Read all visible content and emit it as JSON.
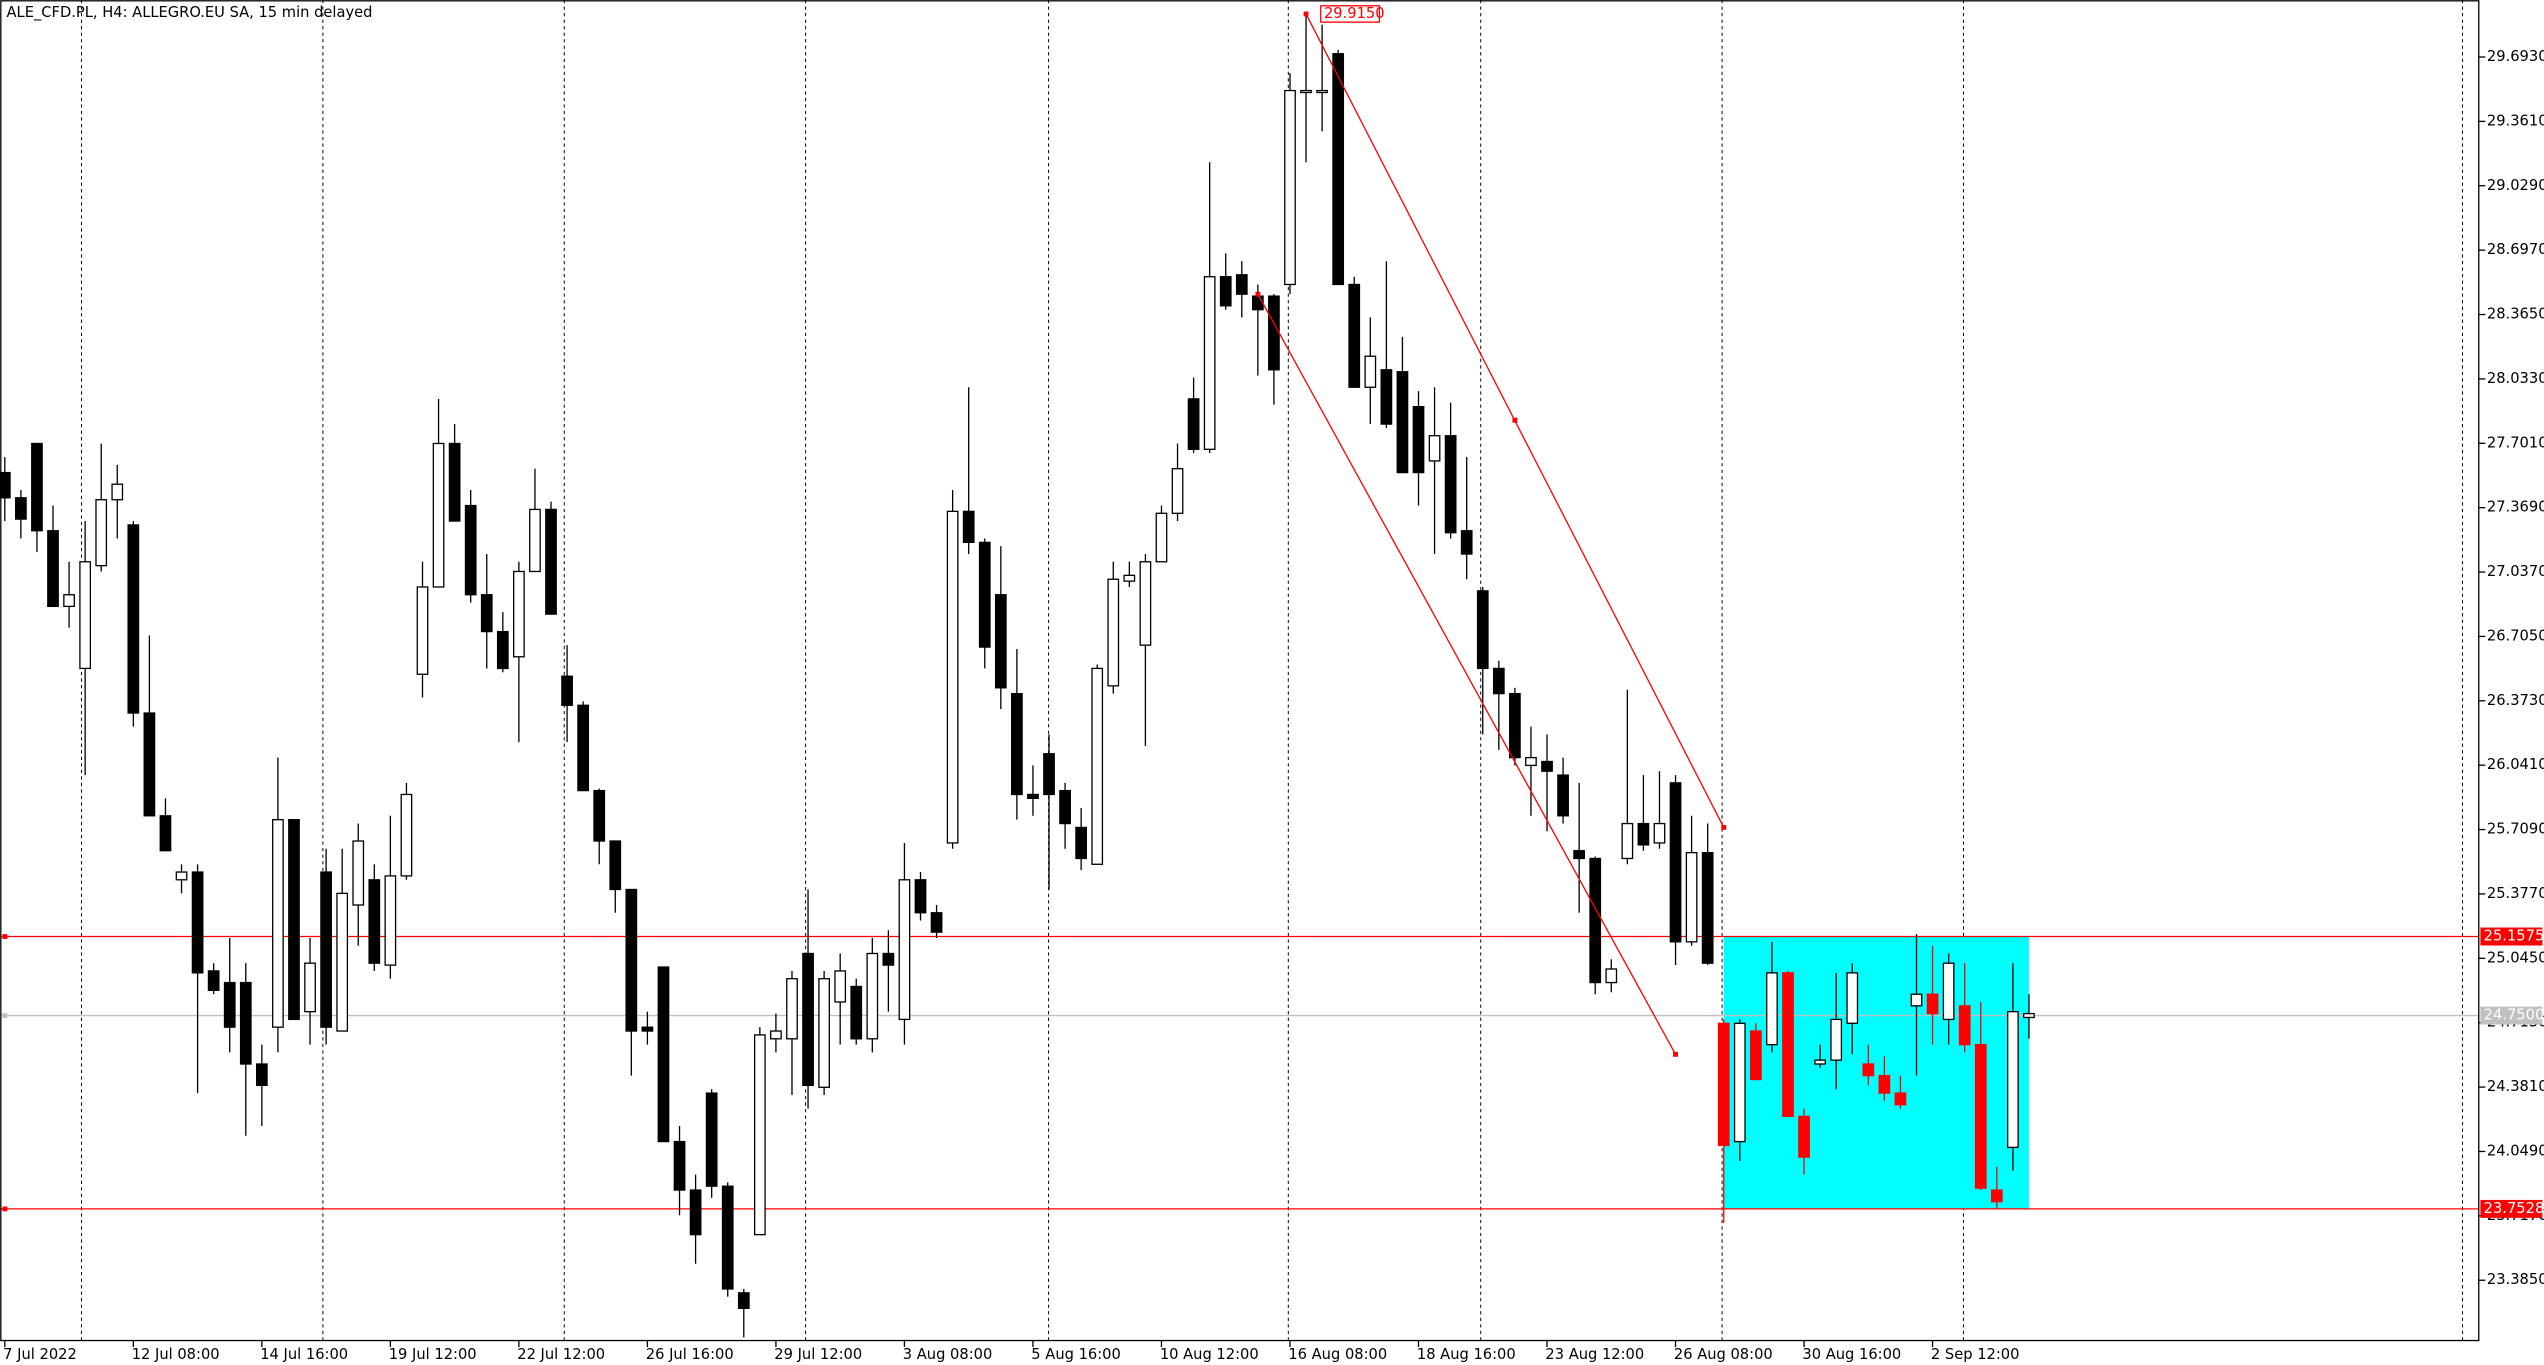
{
  "chart_data": {
    "type": "candlestick",
    "title": "ALE_CFD.PL, H4:  ALLEGRO.EU SA, 15 min delayed",
    "xlim": [
      -0.3,
      154
    ],
    "ylim": [
      23.074,
      29.987
    ],
    "grid": false,
    "up_color": "#ffffff",
    "down_color": "#000000",
    "yticks": [
      {
        "value": 29.693,
        "label": "29.6930"
      },
      {
        "value": 29.361,
        "label": "29.3610"
      },
      {
        "value": 29.029,
        "label": "29.0290"
      },
      {
        "value": 28.697,
        "label": "28.6970"
      },
      {
        "value": 28.365,
        "label": "28.3650"
      },
      {
        "value": 28.033,
        "label": "28.0330"
      },
      {
        "value": 27.701,
        "label": "27.7010"
      },
      {
        "value": 27.369,
        "label": "27.3690"
      },
      {
        "value": 27.037,
        "label": "27.0370"
      },
      {
        "value": 26.705,
        "label": "26.7050"
      },
      {
        "value": 26.373,
        "label": "26.3730"
      },
      {
        "value": 26.041,
        "label": "26.0410"
      },
      {
        "value": 25.709,
        "label": "25.7090"
      },
      {
        "value": 25.377,
        "label": "25.3770"
      },
      {
        "value": 25.045,
        "label": "25.0450"
      },
      {
        "value": 24.713,
        "label": "24.7130"
      },
      {
        "value": 24.381,
        "label": "24.3810"
      },
      {
        "value": 24.049,
        "label": "24.0490"
      },
      {
        "value": 23.717,
        "label": "23.7170"
      },
      {
        "value": 23.385,
        "label": "23.3850"
      }
    ],
    "xticks": [
      {
        "value": 0,
        "label": "7 Jul 2022"
      },
      {
        "value": 8,
        "label": "12 Jul 08:00"
      },
      {
        "value": 16,
        "label": "14 Jul 16:00"
      },
      {
        "value": 24,
        "label": "19 Jul 12:00"
      },
      {
        "value": 32,
        "label": "22 Jul 12:00"
      },
      {
        "value": 40,
        "label": "26 Jul 16:00"
      },
      {
        "value": 48,
        "label": "29 Jul 12:00"
      },
      {
        "value": 56,
        "label": "3 Aug 08:00"
      },
      {
        "value": 64,
        "label": "5 Aug 16:00"
      },
      {
        "value": 72,
        "label": "10 Aug 12:00"
      },
      {
        "value": 80,
        "label": "16 Aug 08:00"
      },
      {
        "value": 88,
        "label": "18 Aug 16:00"
      },
      {
        "value": 96,
        "label": "23 Aug 12:00"
      },
      {
        "value": 104,
        "label": "26 Aug 08:00"
      },
      {
        "value": 112,
        "label": "30 Aug 16:00"
      },
      {
        "value": 120,
        "label": "2 Sep 12:00"
      }
    ],
    "candles": [
      [
        27.55,
        27.63,
        27.3,
        27.42
      ],
      [
        27.42,
        27.46,
        27.21,
        27.31
      ],
      [
        27.7,
        27.7,
        27.14,
        27.25
      ],
      [
        27.25,
        27.38,
        26.86,
        26.86
      ],
      [
        26.86,
        27.09,
        26.75,
        26.92
      ],
      [
        26.54,
        27.3,
        25.99,
        27.09
      ],
      [
        27.07,
        27.7,
        27.04,
        27.41
      ],
      [
        27.41,
        27.59,
        27.21,
        27.49
      ],
      [
        27.28,
        27.3,
        26.24,
        26.31
      ],
      [
        26.31,
        26.71,
        25.78,
        25.78
      ],
      [
        25.78,
        25.87,
        25.6,
        25.6
      ],
      [
        25.45,
        25.53,
        25.38,
        25.49
      ],
      [
        25.49,
        25.53,
        24.35,
        24.97
      ],
      [
        24.98,
        25.02,
        24.86,
        24.88
      ],
      [
        24.92,
        25.15,
        24.56,
        24.69
      ],
      [
        24.92,
        25.02,
        24.13,
        24.5
      ],
      [
        24.5,
        24.6,
        24.18,
        24.39
      ],
      [
        24.69,
        26.08,
        24.56,
        25.76
      ],
      [
        25.76,
        25.76,
        24.73,
        24.73
      ],
      [
        24.77,
        25.15,
        24.6,
        25.02
      ],
      [
        25.49,
        25.61,
        24.6,
        24.69
      ],
      [
        24.67,
        25.61,
        24.67,
        25.38
      ],
      [
        25.32,
        25.74,
        25.11,
        25.65
      ],
      [
        25.45,
        25.53,
        24.98,
        25.02
      ],
      [
        25.01,
        25.78,
        24.94,
        25.47
      ],
      [
        25.47,
        25.95,
        25.45,
        25.89
      ],
      [
        26.51,
        27.09,
        26.39,
        26.96
      ],
      [
        26.96,
        27.93,
        26.96,
        27.7
      ],
      [
        27.7,
        27.8,
        27.3,
        27.3
      ],
      [
        27.38,
        27.46,
        26.88,
        26.92
      ],
      [
        26.92,
        27.13,
        26.54,
        26.73
      ],
      [
        26.73,
        26.83,
        26.52,
        26.54
      ],
      [
        26.6,
        27.09,
        26.16,
        27.04
      ],
      [
        27.04,
        27.57,
        27.04,
        27.36
      ],
      [
        27.36,
        27.4,
        26.82,
        26.82
      ],
      [
        26.5,
        26.66,
        26.16,
        26.35
      ],
      [
        26.35,
        26.37,
        25.91,
        25.91
      ],
      [
        25.91,
        25.92,
        25.53,
        25.65
      ],
      [
        25.65,
        25.65,
        25.28,
        25.4
      ],
      [
        25.4,
        25.4,
        24.44,
        24.67
      ],
      [
        24.69,
        24.77,
        24.6,
        24.67
      ],
      [
        25.0,
        25.0,
        24.1,
        24.1
      ],
      [
        24.1,
        24.18,
        23.72,
        23.85
      ],
      [
        23.85,
        23.93,
        23.47,
        23.62
      ],
      [
        24.35,
        24.37,
        23.81,
        23.87
      ],
      [
        23.87,
        23.89,
        23.3,
        23.34
      ],
      [
        23.32,
        23.34,
        23.09,
        23.24
      ],
      [
        23.62,
        24.69,
        23.62,
        24.65
      ],
      [
        24.63,
        24.76,
        24.56,
        24.67
      ],
      [
        24.63,
        24.98,
        24.34,
        24.94
      ],
      [
        25.07,
        25.4,
        24.27,
        24.39
      ],
      [
        24.38,
        24.98,
        24.34,
        24.94
      ],
      [
        24.82,
        25.07,
        24.6,
        24.98
      ],
      [
        24.9,
        24.94,
        24.6,
        24.63
      ],
      [
        24.63,
        25.15,
        24.56,
        25.07
      ],
      [
        25.07,
        25.19,
        24.77,
        25.01
      ],
      [
        24.73,
        25.64,
        24.6,
        25.45
      ],
      [
        25.45,
        25.49,
        25.24,
        25.28
      ],
      [
        25.28,
        25.32,
        25.15,
        25.18
      ],
      [
        25.64,
        27.46,
        25.61,
        27.35
      ],
      [
        27.35,
        27.99,
        27.13,
        27.19
      ],
      [
        27.19,
        27.21,
        26.54,
        26.65
      ],
      [
        26.92,
        27.17,
        26.33,
        26.44
      ],
      [
        26.41,
        26.64,
        25.76,
        25.89
      ],
      [
        25.89,
        26.04,
        25.78,
        25.87
      ],
      [
        26.1,
        26.2,
        25.4,
        25.89
      ],
      [
        25.91,
        25.95,
        25.61,
        25.74
      ],
      [
        25.72,
        25.82,
        25.5,
        25.56
      ],
      [
        25.53,
        26.56,
        25.53,
        26.54
      ],
      [
        26.45,
        27.09,
        26.41,
        27.0
      ],
      [
        26.99,
        27.09,
        26.96,
        27.02
      ],
      [
        26.66,
        27.13,
        26.14,
        27.09
      ],
      [
        27.09,
        27.38,
        27.09,
        27.34
      ],
      [
        27.34,
        27.7,
        27.3,
        27.57
      ],
      [
        27.93,
        28.04,
        27.65,
        27.67
      ],
      [
        27.67,
        29.15,
        27.65,
        28.56
      ],
      [
        28.56,
        28.68,
        28.39,
        28.41
      ],
      [
        28.57,
        28.64,
        28.35,
        28.47
      ],
      [
        28.46,
        28.52,
        28.05,
        28.39
      ],
      [
        28.46,
        28.47,
        27.9,
        28.08
      ],
      [
        28.52,
        29.61,
        28.47,
        29.52
      ],
      [
        29.51,
        29.915,
        29.15,
        29.52
      ],
      [
        29.51,
        29.86,
        29.31,
        29.52
      ],
      [
        29.71,
        29.73,
        28.52,
        28.52
      ],
      [
        28.52,
        28.56,
        27.99,
        27.99
      ],
      [
        27.99,
        28.35,
        27.8,
        28.15
      ],
      [
        28.08,
        28.64,
        27.78,
        27.8
      ],
      [
        28.07,
        28.25,
        27.55,
        27.55
      ],
      [
        27.89,
        27.97,
        27.38,
        27.55
      ],
      [
        27.61,
        27.99,
        27.13,
        27.74
      ],
      [
        27.74,
        27.91,
        27.21,
        27.24
      ],
      [
        27.25,
        27.63,
        27.0,
        27.13
      ],
      [
        26.94,
        26.96,
        26.2,
        26.54
      ],
      [
        26.54,
        26.58,
        26.12,
        26.41
      ],
      [
        26.41,
        26.44,
        26.04,
        26.08
      ],
      [
        26.04,
        26.24,
        25.78,
        26.08
      ],
      [
        26.06,
        26.2,
        25.7,
        26.01
      ],
      [
        25.99,
        26.08,
        25.74,
        25.78
      ],
      [
        25.6,
        25.95,
        25.28,
        25.56
      ],
      [
        25.56,
        25.57,
        24.86,
        24.92
      ],
      [
        24.92,
        25.04,
        24.87,
        24.99
      ],
      [
        25.56,
        26.43,
        25.53,
        25.74
      ],
      [
        25.74,
        25.99,
        25.6,
        25.63
      ],
      [
        25.64,
        26.01,
        25.61,
        25.74
      ],
      [
        25.95,
        25.99,
        25.01,
        25.13
      ],
      [
        25.13,
        25.78,
        25.11,
        25.59
      ],
      [
        25.59,
        25.74,
        25.01,
        25.02
      ],
      [
        24.71,
        24.73,
        23.68,
        24.08
      ],
      [
        24.1,
        24.73,
        24.0,
        24.71
      ],
      [
        24.67,
        24.71,
        24.42,
        24.42
      ],
      [
        24.6,
        25.13,
        24.56,
        24.97
      ],
      [
        24.97,
        24.98,
        24.23,
        24.23
      ],
      [
        24.23,
        24.27,
        23.93,
        24.02
      ],
      [
        24.5,
        24.6,
        24.48,
        24.52
      ],
      [
        24.52,
        24.97,
        24.37,
        24.73
      ],
      [
        24.71,
        25.02,
        24.55,
        24.97
      ],
      [
        24.5,
        24.6,
        24.39,
        24.44
      ],
      [
        24.44,
        24.54,
        24.31,
        24.35
      ],
      [
        24.35,
        24.44,
        24.27,
        24.29
      ],
      [
        24.8,
        25.17,
        24.44,
        24.86
      ],
      [
        24.86,
        25.11,
        24.6,
        24.76
      ],
      [
        24.73,
        25.07,
        24.6,
        25.02
      ],
      [
        24.8,
        25.02,
        24.56,
        24.6
      ],
      [
        24.6,
        24.82,
        23.85,
        23.86
      ],
      [
        23.85,
        23.97,
        23.75,
        23.79
      ],
      [
        24.07,
        25.02,
        23.95,
        24.77
      ],
      [
        24.74,
        24.86,
        24.63,
        24.76
      ]
    ],
    "box": {
      "x": [
        107,
        126
      ],
      "y": [
        23.7528,
        25.1575
      ],
      "color": "#00ffff",
      "down_color": "#ff0000"
    },
    "hlines": [
      {
        "value": 25.1575,
        "label": "25.1575",
        "color": "#ff0000"
      },
      {
        "value": 23.7528,
        "label": "23.7528",
        "color": "#ff0000"
      },
      {
        "value": 24.75,
        "label": "24.7500",
        "color": "#c0c0c0"
      }
    ],
    "channel": {
      "color": "#ff0000",
      "upper": {
        "x": [
          81,
          107
        ],
        "y": [
          29.915,
          25.72
        ]
      },
      "lower": {
        "x": [
          78,
          104
        ],
        "y": [
          28.47,
          24.55
        ]
      },
      "marker": {
        "x": 94,
        "y": 27.82
      }
    },
    "price_label": {
      "x": 81,
      "value": 29.915,
      "label": "29.9150",
      "color": "#ff0000"
    }
  }
}
